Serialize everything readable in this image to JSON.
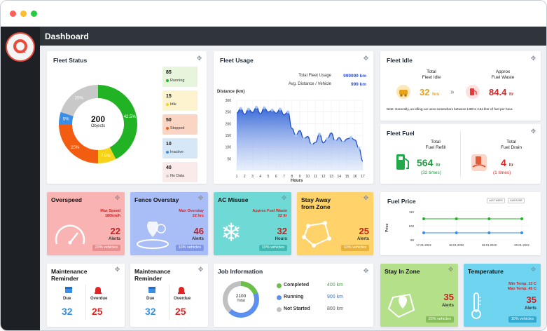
{
  "window": {
    "dots": [
      "#ff5f57",
      "#febc2e",
      "#28c840"
    ]
  },
  "header": {
    "title": "Dashboard"
  },
  "fleet_status": {
    "title": "Fleet Status",
    "total": "200",
    "total_label": "Objects",
    "segment_labels": [
      "42.5%",
      "7.5%",
      "25%",
      "5%",
      "20%"
    ],
    "segments": [
      {
        "name": "Running",
        "value": 42.5,
        "color": "#22b325"
      },
      {
        "name": "Idle",
        "value": 7.5,
        "color": "#f5d319"
      },
      {
        "name": "Stopped",
        "value": 25,
        "color": "#f25d12"
      },
      {
        "name": "Inactive",
        "value": 5,
        "color": "#3a8ee6"
      },
      {
        "name": "No Data",
        "value": 20,
        "color": "#c8c8c8"
      }
    ],
    "legend": [
      {
        "count": "85",
        "label": "Running",
        "bg": "#e6f5dc",
        "dot": "#22b325"
      },
      {
        "count": "15",
        "label": "Idle",
        "bg": "#fdf3cf",
        "dot": "#f5d319"
      },
      {
        "count": "50",
        "label": "Stopped",
        "bg": "#fbd5c4",
        "dot": "#f25d12"
      },
      {
        "count": "10",
        "label": "Inactive",
        "bg": "#d6e7f8",
        "dot": "#3a8ee6"
      },
      {
        "count": "40",
        "label": "No Data",
        "bg": "#fbeaea",
        "dot": "#c8c8c8"
      }
    ]
  },
  "fleet_usage": {
    "title": "Fleet Usage",
    "total_label": "Total Fleet Usage",
    "total_value": "999999 km",
    "avg_label": "Avg. Distance / Vehicle",
    "avg_value": "999 km",
    "ylabel": "Distance (km)",
    "xlabel": "Hours"
  },
  "chart_data": {
    "type": "area",
    "title": "",
    "xlabel": "Hours",
    "ylabel": "Distance (km)",
    "x": [
      1,
      1.5,
      2,
      2.5,
      3,
      3.5,
      4,
      4.5,
      5,
      5.5,
      6,
      6.5,
      7,
      7.5,
      8,
      8.5,
      9,
      9.5,
      10,
      10.5,
      11,
      11.5,
      12,
      12.5,
      13,
      13.5,
      14,
      14.5,
      15,
      15.5,
      16,
      16.5,
      17
    ],
    "values": [
      245,
      265,
      240,
      262,
      248,
      270,
      242,
      268,
      250,
      258,
      245,
      262,
      238,
      250,
      180,
      150,
      170,
      135,
      145,
      110,
      120,
      155,
      118,
      135,
      160,
      125,
      140,
      120,
      135,
      140,
      130,
      95,
      40
    ],
    "ylim": [
      0,
      300
    ],
    "yticks": [
      50,
      100,
      150,
      200,
      250,
      300
    ],
    "xticks": [
      1,
      2,
      3,
      4,
      5,
      6,
      7,
      8,
      9,
      10,
      11,
      12,
      13,
      14,
      15,
      16,
      17
    ],
    "grid": true
  },
  "fleet_idle": {
    "title": "Fleet Idle",
    "total_label_1": "Total",
    "total_label_2": "Fleet Idle",
    "total_value": "32",
    "total_unit": "hrs",
    "waste_label_1": "Approx",
    "waste_label_2": "Fuel Waste",
    "waste_value": "84.4",
    "waste_unit": "ltr",
    "note": "Note: Generally, an idling car uses somewhere between 1.89 to 2.64 liter of fuel per hour."
  },
  "fleet_fuel": {
    "title": "Fleet Fuel",
    "refill_label_1": "Total",
    "refill_label_2": "Fuel Refill",
    "refill_value": "564",
    "refill_unit": "ltr",
    "refill_times": "(32 times)",
    "drain_label_1": "Total",
    "drain_label_2": "Fuel Drain",
    "drain_value": "4",
    "drain_unit": "ltr",
    "drain_times": "(1 times)"
  },
  "overspeed": {
    "title": "Overspeed",
    "sub_1": "Max Speed",
    "sub_2": "180km/h",
    "value": "22",
    "unit": "Alerts",
    "badge": "20% vehicles",
    "bg": "#f9b3b3",
    "badge_bg": "#e88e8e"
  },
  "fence_overstay": {
    "title": "Fence Overstay",
    "sub_1": "Max Overstay",
    "sub_2": "22 hrs",
    "value": "46",
    "unit": "Alerts",
    "badge": "10% vehicles",
    "bg": "#a9bdf7",
    "badge_bg": "#7f97e6"
  },
  "ac_misuse": {
    "title": "AC Misuse",
    "sub_1": "Approx Fuel Waste",
    "sub_2": "22 ltr",
    "value": "32",
    "unit": "Hours",
    "badge": "10% vehicles",
    "bg": "#6fdad5",
    "badge_bg": "#3fb9b2"
  },
  "stay_away": {
    "title_1": "Stay Away",
    "title_2": "from Zone",
    "value": "25",
    "unit": "Alerts",
    "badge": "10% vehicles",
    "bg": "#ffd36a",
    "badge_bg": "#e8b23c"
  },
  "fuel_price": {
    "title": "Fuel Price",
    "dropdown_1": "LAST WEEK",
    "dropdown_2": "GASOLINE",
    "ylabel": "Price",
    "yticks": [
      "110",
      "100",
      "90"
    ],
    "xticks": [
      "17-01-2022",
      "18-01-2022",
      "19-01-2022",
      "20-01-2022"
    ]
  },
  "maint_1": {
    "title_1": "Maintenance",
    "title_2": "Reminder",
    "due_label": "Due",
    "due_value": "32",
    "overdue_label": "Overdue",
    "overdue_value": "25"
  },
  "maint_2": {
    "title_1": "Maintenance",
    "title_2": "Reminder",
    "due_label": "Due",
    "due_value": "32",
    "overdue_label": "Overdue",
    "overdue_value": "25"
  },
  "job_info": {
    "title": "Job Information",
    "total": "2100",
    "total_label": "Total",
    "rows": [
      {
        "label": "Completed",
        "value": "400 km",
        "color": "#6cc04a"
      },
      {
        "label": "Running",
        "value": "900 km",
        "color": "#5b8ff0"
      },
      {
        "label": "Not Started",
        "value": "800 km",
        "color": "#c0c0c0"
      }
    ]
  },
  "stay_in_zone": {
    "title": "Stay In Zone",
    "value": "35",
    "unit": "Alerts",
    "badge": "20% vehicles",
    "bg": "#b5e08a",
    "badge_bg": "#86bd59"
  },
  "temperature": {
    "title": "Temperature",
    "sub_1": "Min Temp. 13 C",
    "sub_2": "Max Temp. 45 C",
    "value": "35",
    "unit": "Alerts",
    "badge": "10% vehicles",
    "bg": "#6ed4f0",
    "badge_bg": "#33a9cf"
  }
}
